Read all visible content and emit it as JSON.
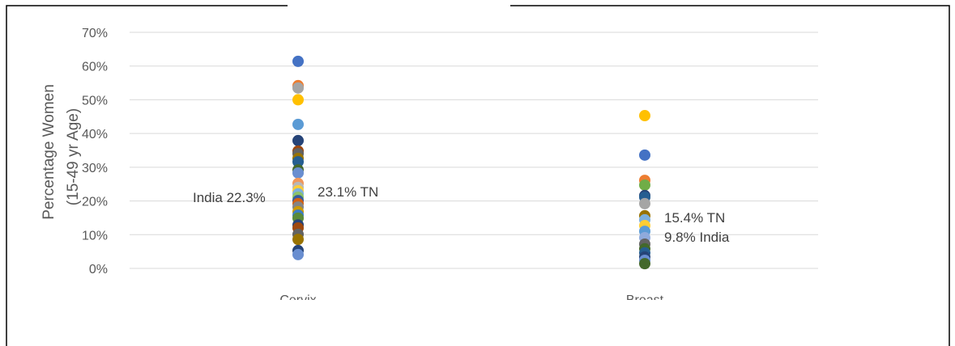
{
  "chart_data": {
    "type": "dot",
    "ylabel": [
      "Percentage Women",
      "(15-49 yr Age)"
    ],
    "categories": [
      "Cervix",
      "Breast"
    ],
    "values": [
      [
        61.4,
        54.2,
        53.5,
        50.0,
        42.7,
        37.9,
        34.8,
        34.0,
        32.6,
        31.6,
        29.2,
        28.3,
        25.2,
        24.0,
        23.0,
        22.1,
        21.1,
        20.1,
        19.2,
        18.2,
        16.8,
        15.8,
        14.9,
        12.9,
        12.0,
        10.1,
        8.6,
        5.3,
        4.1
      ],
      [
        45.3,
        33.6,
        26.1,
        24.7,
        21.6,
        21.1,
        19.2,
        15.6,
        14.4,
        12.7,
        11.0,
        9.1,
        7.2,
        5.8,
        4.6,
        3.4,
        2.4,
        1.4
      ]
    ],
    "colors": [
      [
        "#4472c4",
        "#ed7d31",
        "#a5a5a5",
        "#ffc000",
        "#5b9bd5",
        "#264478",
        "#9e480e",
        "#636363",
        "#997300",
        "#255e91",
        "#43682b",
        "#698ed0",
        "#f1975a",
        "#b7b7b7",
        "#ffcd33",
        "#7cafdd",
        "#8cc168",
        "#335aa1",
        "#d26012",
        "#848484",
        "#cc9a00",
        "#3c7dc4",
        "#5a8a39",
        "#264478",
        "#9e480e",
        "#636363",
        "#997300",
        "#264478",
        "#698ed0"
      ],
      [
        "#ffc000",
        "#4472c4",
        "#ed7d31",
        "#70ad47",
        "#264478",
        "#255e91",
        "#a5a5a5",
        "#997300",
        "#7cafdd",
        "#ffcd33",
        "#5b9bd5",
        "#8faadc",
        "#636363",
        "#43682b",
        "#255e91",
        "#264478",
        "#698ed0",
        "#43682b"
      ]
    ],
    "ylim": [
      0,
      70
    ],
    "yticks": [
      {
        "value": 0,
        "label": "0%"
      },
      {
        "value": 10,
        "label": "10%"
      },
      {
        "value": 20,
        "label": "20%"
      },
      {
        "value": 30,
        "label": "30%"
      },
      {
        "value": 40,
        "label": "40%"
      },
      {
        "value": 50,
        "label": "50%"
      },
      {
        "value": 60,
        "label": "60%"
      },
      {
        "value": 70,
        "label": "70%"
      }
    ],
    "grid": true,
    "annotations": [
      "India 22.3%",
      "23.1% TN",
      "15.4% TN",
      "9.8% India"
    ]
  }
}
